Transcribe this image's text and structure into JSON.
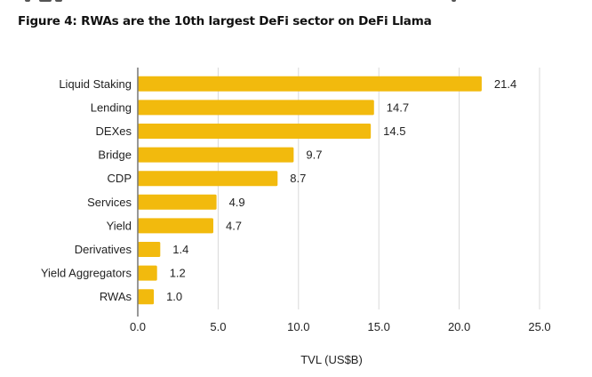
{
  "figure": {
    "title": "Figure 4: RWAs are the 10th largest DeFi sector on DeFi Llama"
  },
  "colors": {
    "bar": "#F2BA0D",
    "grid": "#D9D9D9",
    "axis": "#777777",
    "text": "#222222"
  },
  "chart_data": {
    "type": "bar",
    "orientation": "horizontal",
    "title": "Figure 4: RWAs are the 10th largest DeFi sector on DeFi Llama",
    "xlabel": "TVL (US$B)",
    "ylabel": "",
    "categories": [
      "Liquid Staking",
      "Lending",
      "DEXes",
      "Bridge",
      "CDP",
      "Services",
      "Yield",
      "Derivatives",
      "Yield Aggregators",
      "RWAs"
    ],
    "values": [
      21.4,
      14.7,
      14.5,
      9.7,
      8.7,
      4.9,
      4.7,
      1.4,
      1.2,
      1.0
    ],
    "value_labels": [
      "21.4",
      "14.7",
      "14.5",
      "9.7",
      "8.7",
      "4.9",
      "4.7",
      "1.4",
      "1.2",
      "1.0"
    ],
    "xlim": [
      0,
      25
    ],
    "xticks": [
      0,
      5,
      10,
      15,
      20,
      25
    ],
    "xtick_labels": [
      "0.0",
      "5.0",
      "10.0",
      "15.0",
      "20.0",
      "25.0"
    ],
    "grid": "vertical",
    "legend": "none"
  }
}
